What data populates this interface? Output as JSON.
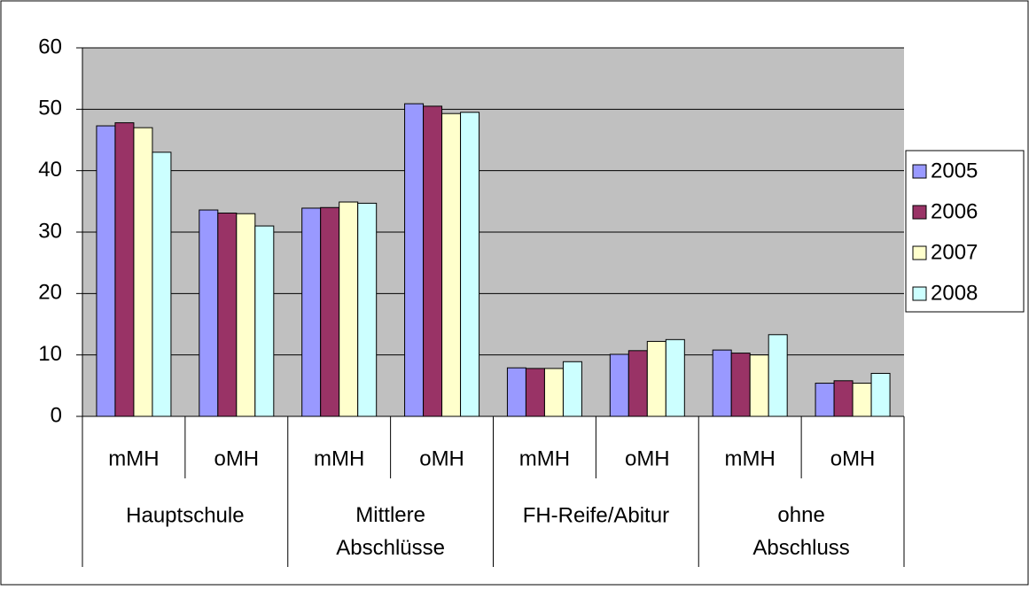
{
  "chart_data": {
    "type": "bar",
    "categories": [
      "mMH",
      "oMH",
      "mMH",
      "oMH",
      "mMH",
      "oMH",
      "mMH",
      "oMH"
    ],
    "groups": [
      "Hauptschule",
      "Mittlere Abschlüsse",
      "FH-Reife/Abitur",
      "ohne Abschluss"
    ],
    "series": [
      {
        "name": "2005",
        "color": "#9999ff",
        "values": [
          47.3,
          33.6,
          33.9,
          50.9,
          7.9,
          10.1,
          10.8,
          5.4
        ]
      },
      {
        "name": "2006",
        "color": "#993366",
        "values": [
          47.8,
          33.1,
          34.0,
          50.5,
          7.8,
          10.7,
          10.3,
          5.8
        ]
      },
      {
        "name": "2007",
        "color": "#ffffcc",
        "values": [
          47.0,
          33.0,
          34.9,
          49.3,
          7.8,
          12.2,
          10.0,
          5.4
        ]
      },
      {
        "name": "2008",
        "color": "#ccffff",
        "values": [
          43.0,
          31.0,
          34.7,
          49.5,
          8.9,
          12.5,
          13.3,
          7.0
        ]
      }
    ],
    "ylim": [
      0,
      60
    ],
    "yticks": [
      0,
      10,
      20,
      30,
      40,
      50,
      60
    ],
    "grid": true,
    "legend": "right"
  }
}
